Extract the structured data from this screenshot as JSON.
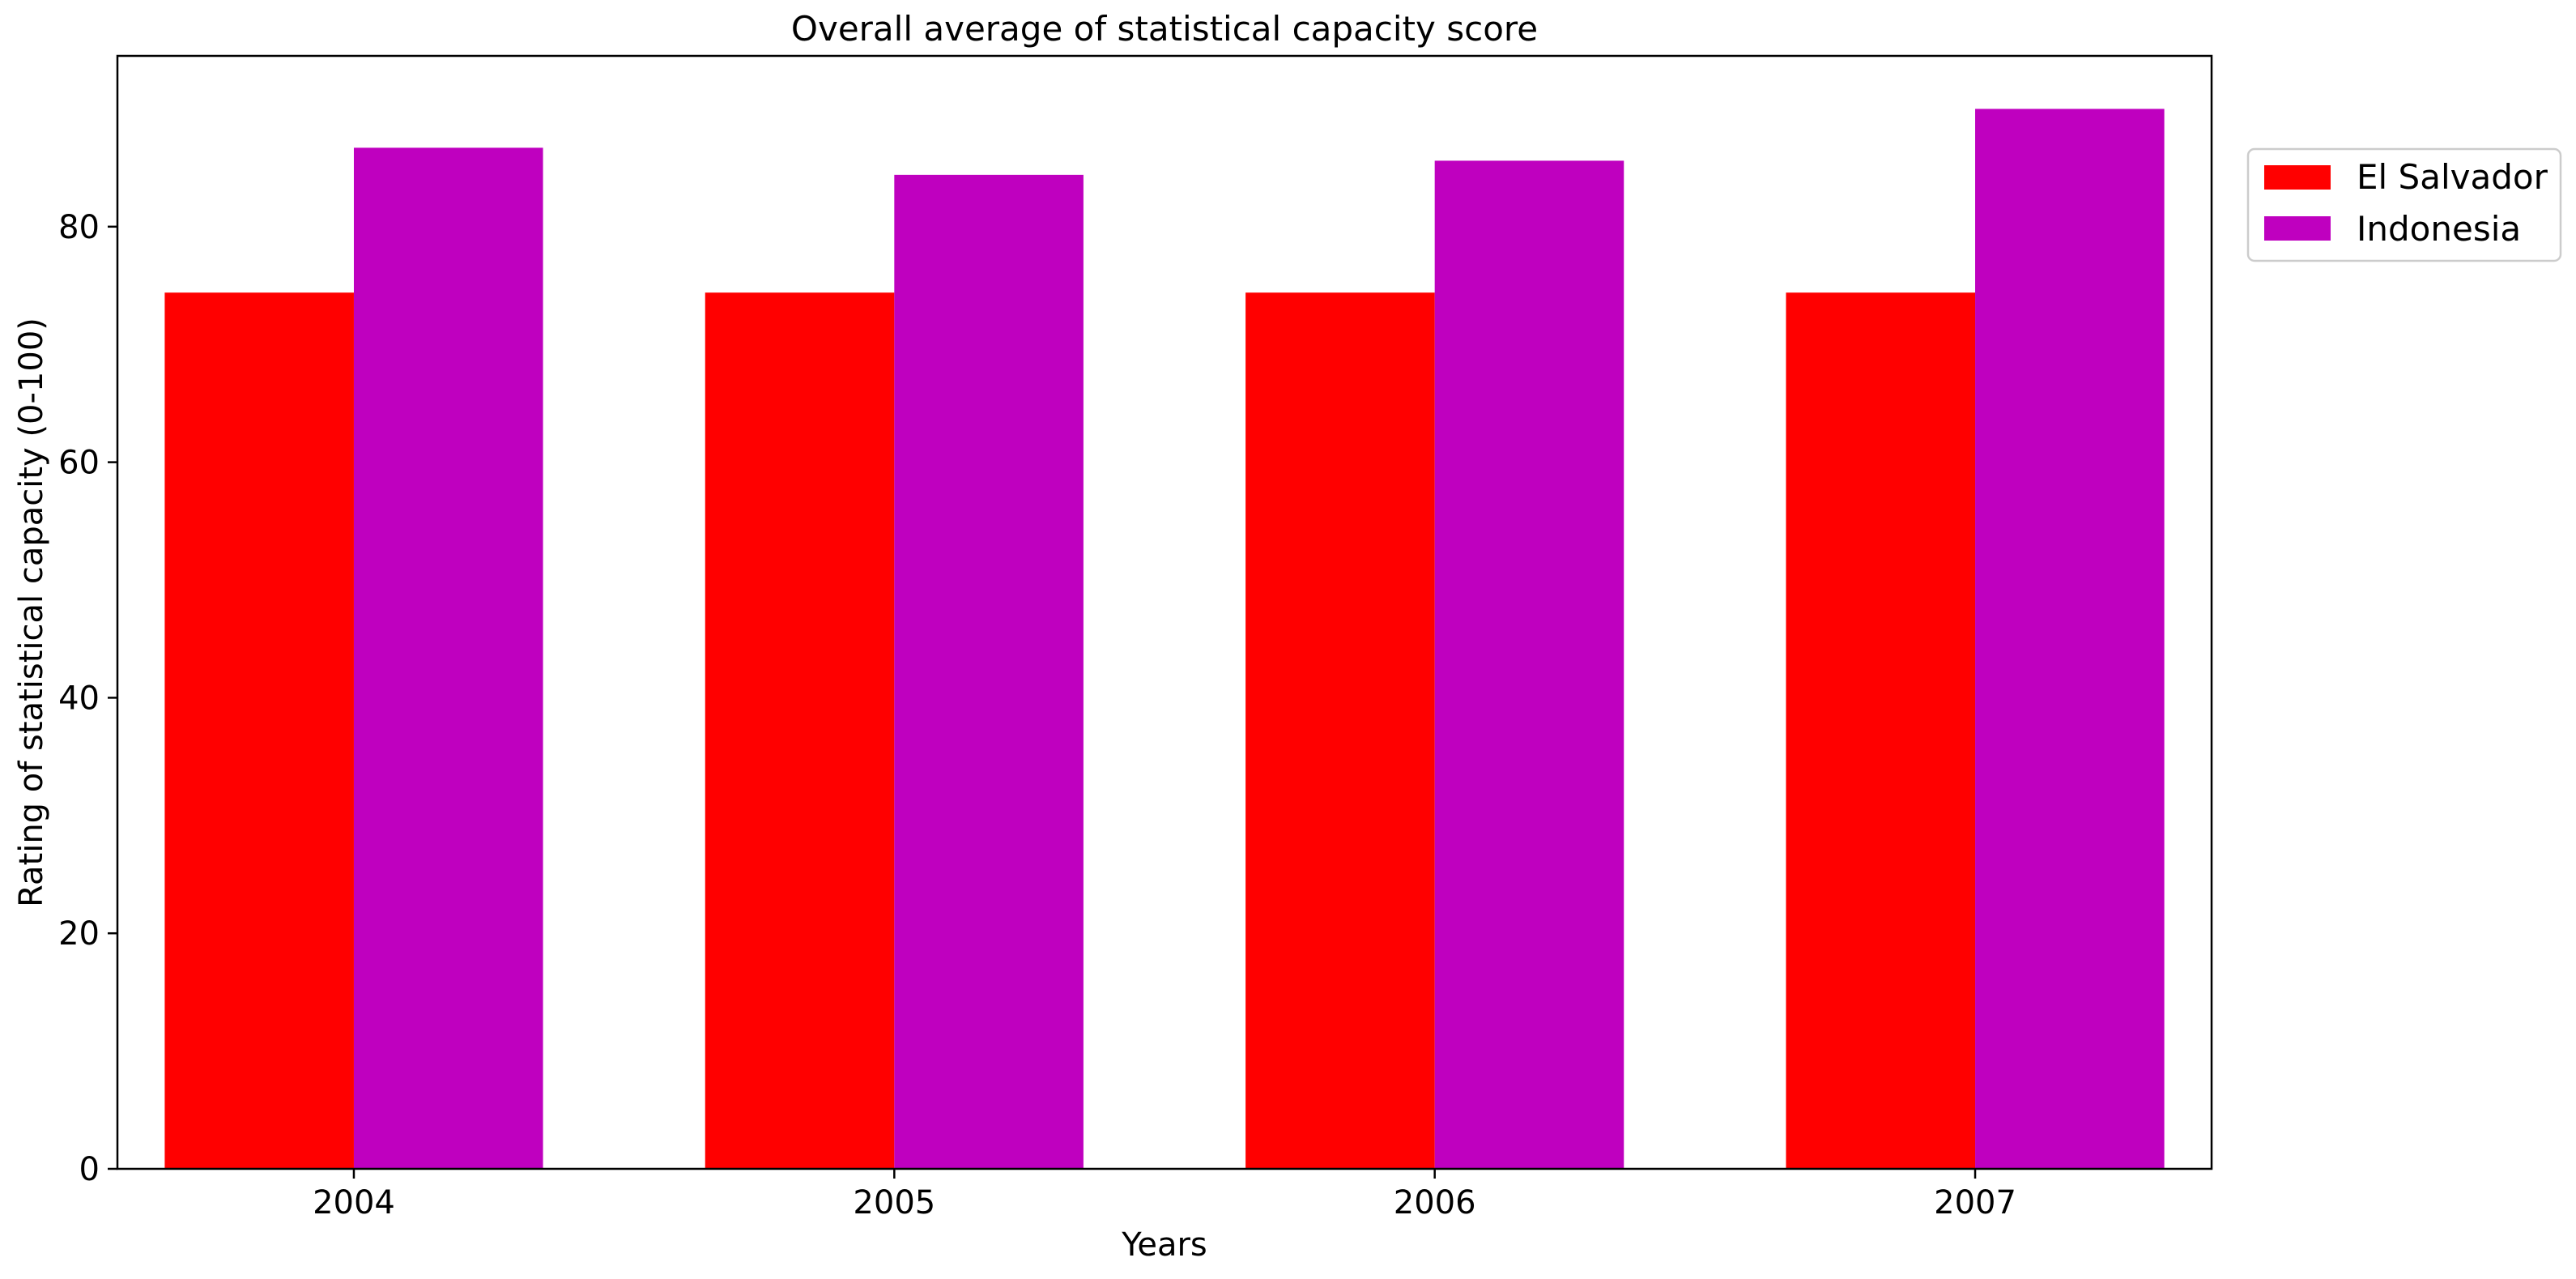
{
  "chart_data": {
    "type": "bar",
    "title": "Overall average of statistical capacity score",
    "xlabel": "Years",
    "ylabel": "Rating of statistical capacity (0-100)",
    "categories": [
      "2004",
      "2005",
      "2006",
      "2007"
    ],
    "series": [
      {
        "name": "El Salvador",
        "color": "#ff0000",
        "values": [
          74.4,
          74.4,
          74.4,
          74.4
        ]
      },
      {
        "name": "Indonesia",
        "color": "#bf00bf",
        "values": [
          86.7,
          84.4,
          85.6,
          90.0
        ]
      }
    ],
    "ylim": [
      0,
      94.5
    ],
    "yticks": [
      0,
      20,
      40,
      60,
      80
    ],
    "grid": false,
    "legend_position": "outside-top-right"
  }
}
